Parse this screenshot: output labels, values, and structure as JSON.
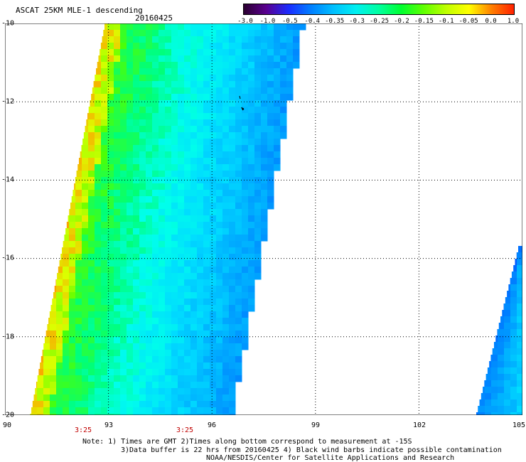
{
  "header": {
    "title": "ASCAT 25KM MLE-1 descending",
    "date": "20160425"
  },
  "colorbar": {
    "labels": [
      "-3.0",
      "-1.0",
      "-0.5",
      "-0.4",
      "-0.35",
      "-0.3",
      "-0.25",
      "-0.2",
      "-0.15",
      "-0.1",
      "-0.05",
      "0.0",
      "1.0"
    ],
    "colors": [
      "#2a0030",
      "#5a0090",
      "#1a2cff",
      "#0080ff",
      "#00c0ff",
      "#00f0f0",
      "#00ffa0",
      "#00ff30",
      "#60ff00",
      "#c0ff00",
      "#ffff00",
      "#ff8000",
      "#ff2000"
    ]
  },
  "axes": {
    "y_labels": [
      "-10",
      "-12",
      "-14",
      "-16",
      "-18",
      "-20"
    ],
    "x_labels": [
      "90",
      "93",
      "96",
      "99",
      "102",
      "105"
    ],
    "lat_range": [
      -20,
      -10
    ],
    "lon_range": [
      90,
      105
    ],
    "grid": true
  },
  "times": [
    "3:25",
    "3:25"
  ],
  "notes": {
    "line1": "Note: 1) Times are GMT 2)Times along bottom correspond to measurement at -15S",
    "line2": "3)Data buffer is 22 hrs from 20160425 4) Black wind barbs indicate possible contamination",
    "line3": "NOAA/NESDIS/Center for Satellite Applications and Research"
  }
}
